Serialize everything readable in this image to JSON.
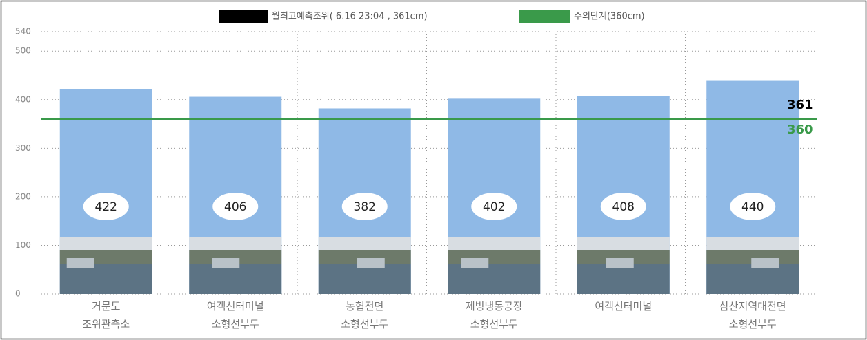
{
  "chart_data": {
    "type": "bar",
    "categories": [
      "거문도\n조위관측소",
      "여객선터미널\n소형선부두",
      "농협전면\n소형선부두",
      "제빙냉동공장\n소형선부두",
      "여객선터미널",
      "삼산지역대전면\n소형선부두"
    ],
    "values": [
      422,
      406,
      382,
      402,
      408,
      440
    ],
    "color": "#8fb9e6",
    "ylim": [
      0,
      540
    ],
    "yticks": [
      0,
      100,
      200,
      300,
      400,
      500,
      540
    ],
    "grid": true,
    "reference_lines": [
      {
        "name": "월최고예측조위( 6.16  23:04 , 361cm)",
        "color": "#000000",
        "value": 361
      },
      {
        "name": "주의단계(360cm)",
        "color": "#3a9a4a",
        "value": 360
      }
    ]
  }
}
